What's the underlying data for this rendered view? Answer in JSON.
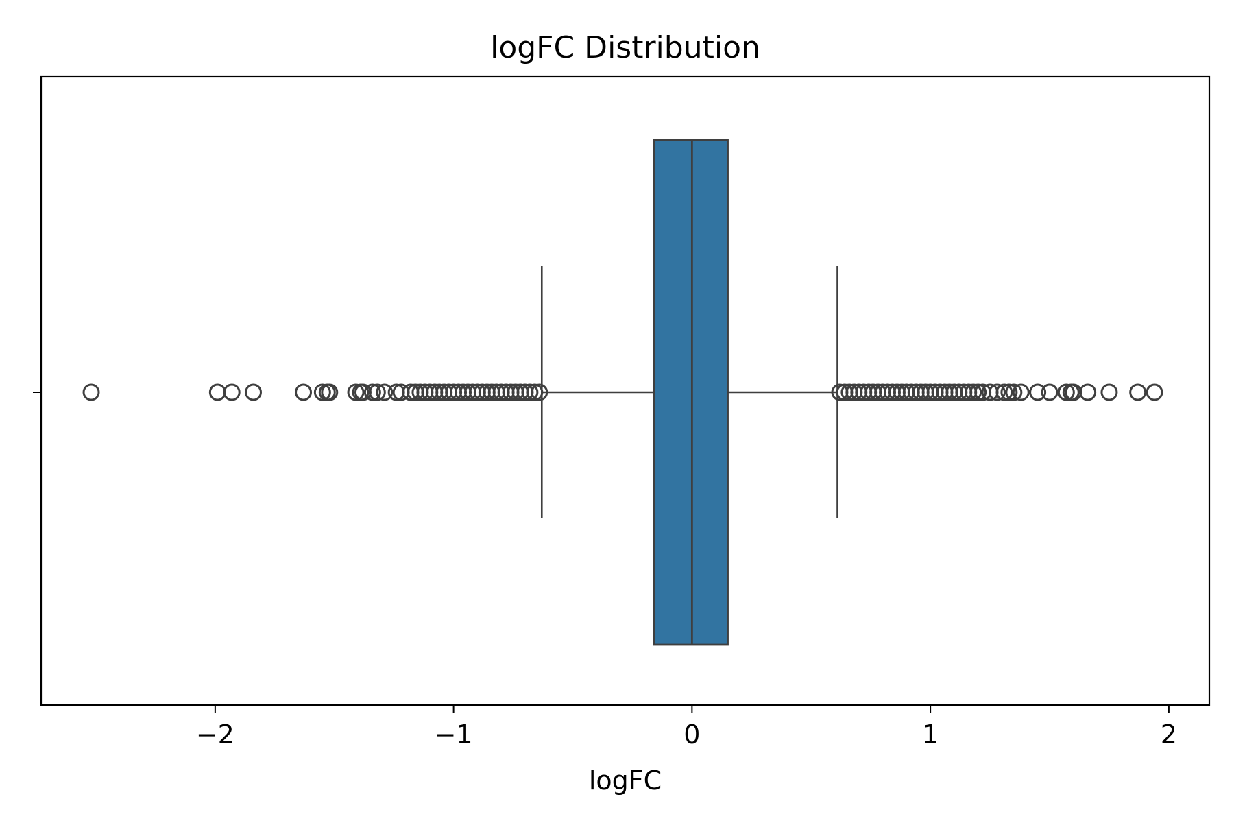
{
  "chart_data": {
    "type": "box",
    "title": "logFC Distribution",
    "xlabel": "logFC",
    "ylabel": "",
    "xlim": [
      -2.73,
      2.17
    ],
    "x_ticks": [
      -2,
      -1,
      0,
      1,
      2
    ],
    "x_tick_labels": [
      "−2",
      "−1",
      "0",
      "1",
      "2"
    ],
    "y_ticks": [
      ""
    ],
    "grid": false,
    "orientation": "horizontal",
    "colors": {
      "box_fill": "#3274a1",
      "line": "#3f3f3f"
    },
    "box": {
      "whisker_low": -0.63,
      "q1": -0.16,
      "median": 0.0,
      "q3": 0.15,
      "whisker_high": 0.61
    },
    "outliers": [
      -2.52,
      -1.99,
      -1.93,
      -1.84,
      -1.63,
      -1.55,
      -1.53,
      -1.52,
      -1.41,
      -1.39,
      -1.38,
      -1.34,
      -1.32,
      -1.29,
      -1.24,
      -1.22,
      -1.18,
      -1.16,
      -1.14,
      -1.12,
      -1.1,
      -1.08,
      -1.06,
      -1.04,
      -1.02,
      -1.0,
      -0.98,
      -0.96,
      -0.94,
      -0.92,
      -0.9,
      -0.88,
      -0.86,
      -0.84,
      -0.82,
      -0.8,
      -0.78,
      -0.76,
      -0.74,
      -0.72,
      -0.7,
      -0.68,
      -0.66,
      -0.64,
      0.62,
      0.64,
      0.66,
      0.68,
      0.7,
      0.72,
      0.74,
      0.76,
      0.78,
      0.8,
      0.82,
      0.84,
      0.86,
      0.88,
      0.9,
      0.92,
      0.94,
      0.96,
      0.98,
      1.0,
      1.02,
      1.04,
      1.06,
      1.08,
      1.1,
      1.12,
      1.14,
      1.16,
      1.18,
      1.2,
      1.22,
      1.25,
      1.28,
      1.31,
      1.33,
      1.35,
      1.38,
      1.45,
      1.5,
      1.57,
      1.59,
      1.6,
      1.66,
      1.75,
      1.87,
      1.94
    ]
  }
}
